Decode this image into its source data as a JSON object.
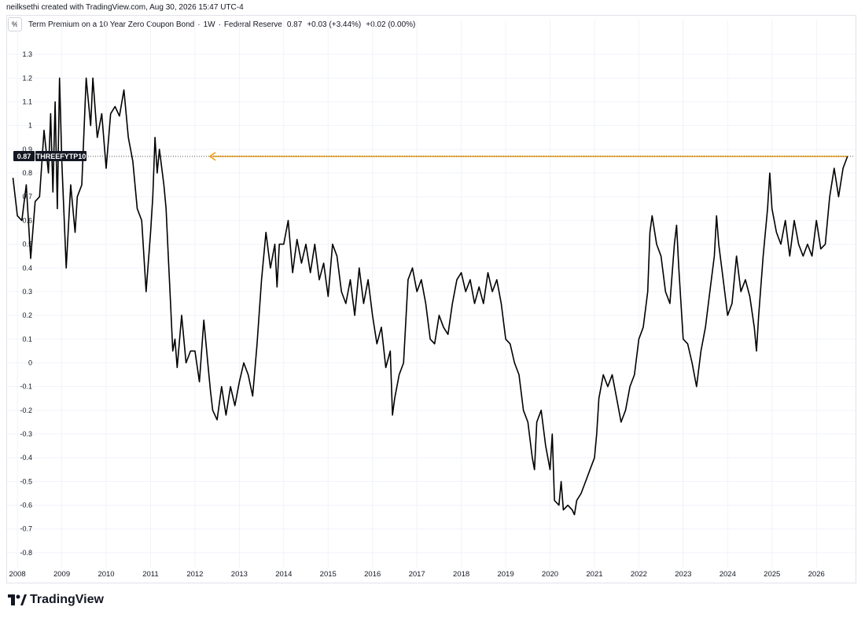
{
  "attribution": "neilksethi created with TradingView.com, Aug 30, 2026 15:47 UTC-4",
  "legend": {
    "unit_button": "%",
    "title": "Term Premium on a 10 Year Zero Coupon Bond",
    "interval": "1W",
    "source": "Federal Reserve",
    "last": "0.87",
    "change": "+0.03 (+3.44%)",
    "change2": "+0.02 (0.00%)"
  },
  "brand": {
    "name": "TradingView",
    "icon": "tradingview-logo-icon"
  },
  "colors": {
    "line": "#000000",
    "alert": "#f59d00",
    "grid": "#f0f3fa",
    "axis_text": "#131722"
  },
  "chart_data": {
    "type": "line",
    "title": "Term Premium on a 10 Year Zero Coupon Bond",
    "ylabel": "%",
    "ylim": [
      -0.85,
      1.38
    ],
    "xlim": [
      2007.75,
      2026.9
    ],
    "y_ticks": [
      "1.3",
      "1.2",
      "1.1",
      "1",
      "0.9",
      "0.8",
      "0.7",
      "0.6",
      "0.5",
      "0.4",
      "0.3",
      "0.2",
      "0.1",
      "0",
      "-0.1",
      "-0.2",
      "-0.3",
      "-0.4",
      "-0.5",
      "-0.6",
      "-0.7",
      "-0.8"
    ],
    "x_ticks": [
      "2008",
      "2009",
      "2010",
      "2011",
      "2012",
      "2013",
      "2014",
      "2015",
      "2016",
      "2017",
      "2018",
      "2019",
      "2020",
      "2021",
      "2022",
      "2023",
      "2024",
      "2025",
      "2026"
    ],
    "grid": true,
    "series": [
      {
        "name": "THREEFYTP10",
        "points": [
          [
            2007.9,
            0.78
          ],
          [
            2008.0,
            0.62
          ],
          [
            2008.1,
            0.6
          ],
          [
            2008.2,
            0.75
          ],
          [
            2008.3,
            0.44
          ],
          [
            2008.4,
            0.68
          ],
          [
            2008.5,
            0.7
          ],
          [
            2008.6,
            0.98
          ],
          [
            2008.7,
            0.8
          ],
          [
            2008.75,
            1.05
          ],
          [
            2008.8,
            0.72
          ],
          [
            2008.85,
            1.1
          ],
          [
            2008.9,
            0.65
          ],
          [
            2008.95,
            1.2
          ],
          [
            2009.0,
            0.85
          ],
          [
            2009.1,
            0.4
          ],
          [
            2009.2,
            0.75
          ],
          [
            2009.3,
            0.55
          ],
          [
            2009.35,
            0.7
          ],
          [
            2009.45,
            0.75
          ],
          [
            2009.55,
            1.2
          ],
          [
            2009.65,
            1.0
          ],
          [
            2009.7,
            1.2
          ],
          [
            2009.8,
            0.95
          ],
          [
            2009.9,
            1.05
          ],
          [
            2010.0,
            0.82
          ],
          [
            2010.1,
            1.05
          ],
          [
            2010.2,
            1.08
          ],
          [
            2010.3,
            1.04
          ],
          [
            2010.4,
            1.15
          ],
          [
            2010.5,
            0.95
          ],
          [
            2010.6,
            0.85
          ],
          [
            2010.7,
            0.65
          ],
          [
            2010.8,
            0.6
          ],
          [
            2010.85,
            0.45
          ],
          [
            2010.9,
            0.3
          ],
          [
            2011.0,
            0.55
          ],
          [
            2011.05,
            0.7
          ],
          [
            2011.1,
            0.95
          ],
          [
            2011.15,
            0.8
          ],
          [
            2011.2,
            0.9
          ],
          [
            2011.3,
            0.75
          ],
          [
            2011.35,
            0.65
          ],
          [
            2011.4,
            0.45
          ],
          [
            2011.45,
            0.25
          ],
          [
            2011.5,
            0.05
          ],
          [
            2011.55,
            0.1
          ],
          [
            2011.6,
            -0.02
          ],
          [
            2011.7,
            0.2
          ],
          [
            2011.8,
            0.0
          ],
          [
            2011.9,
            0.05
          ],
          [
            2012.0,
            0.05
          ],
          [
            2012.1,
            -0.08
          ],
          [
            2012.2,
            0.18
          ],
          [
            2012.3,
            -0.02
          ],
          [
            2012.35,
            -0.12
          ],
          [
            2012.4,
            -0.2
          ],
          [
            2012.5,
            -0.24
          ],
          [
            2012.6,
            -0.1
          ],
          [
            2012.7,
            -0.22
          ],
          [
            2012.8,
            -0.1
          ],
          [
            2012.9,
            -0.18
          ],
          [
            2013.0,
            -0.08
          ],
          [
            2013.1,
            0.0
          ],
          [
            2013.2,
            -0.05
          ],
          [
            2013.3,
            -0.14
          ],
          [
            2013.4,
            0.08
          ],
          [
            2013.5,
            0.35
          ],
          [
            2013.6,
            0.55
          ],
          [
            2013.7,
            0.4
          ],
          [
            2013.8,
            0.5
          ],
          [
            2013.85,
            0.32
          ],
          [
            2013.9,
            0.5
          ],
          [
            2014.0,
            0.5
          ],
          [
            2014.1,
            0.6
          ],
          [
            2014.2,
            0.38
          ],
          [
            2014.3,
            0.52
          ],
          [
            2014.4,
            0.42
          ],
          [
            2014.5,
            0.5
          ],
          [
            2014.6,
            0.38
          ],
          [
            2014.7,
            0.5
          ],
          [
            2014.8,
            0.35
          ],
          [
            2014.9,
            0.42
          ],
          [
            2015.0,
            0.28
          ],
          [
            2015.1,
            0.5
          ],
          [
            2015.2,
            0.45
          ],
          [
            2015.3,
            0.3
          ],
          [
            2015.4,
            0.25
          ],
          [
            2015.5,
            0.35
          ],
          [
            2015.6,
            0.2
          ],
          [
            2015.7,
            0.4
          ],
          [
            2015.8,
            0.25
          ],
          [
            2015.9,
            0.35
          ],
          [
            2016.0,
            0.2
          ],
          [
            2016.1,
            0.08
          ],
          [
            2016.2,
            0.15
          ],
          [
            2016.3,
            -0.02
          ],
          [
            2016.4,
            0.05
          ],
          [
            2016.45,
            -0.22
          ],
          [
            2016.5,
            -0.15
          ],
          [
            2016.6,
            -0.05
          ],
          [
            2016.7,
            0.0
          ],
          [
            2016.8,
            0.35
          ],
          [
            2016.9,
            0.4
          ],
          [
            2017.0,
            0.3
          ],
          [
            2017.1,
            0.35
          ],
          [
            2017.2,
            0.25
          ],
          [
            2017.3,
            0.1
          ],
          [
            2017.4,
            0.08
          ],
          [
            2017.5,
            0.2
          ],
          [
            2017.6,
            0.15
          ],
          [
            2017.7,
            0.12
          ],
          [
            2017.8,
            0.25
          ],
          [
            2017.9,
            0.35
          ],
          [
            2018.0,
            0.38
          ],
          [
            2018.1,
            0.3
          ],
          [
            2018.2,
            0.35
          ],
          [
            2018.3,
            0.25
          ],
          [
            2018.4,
            0.32
          ],
          [
            2018.5,
            0.25
          ],
          [
            2018.6,
            0.38
          ],
          [
            2018.7,
            0.3
          ],
          [
            2018.8,
            0.35
          ],
          [
            2018.9,
            0.25
          ],
          [
            2019.0,
            0.1
          ],
          [
            2019.1,
            0.08
          ],
          [
            2019.2,
            0.0
          ],
          [
            2019.3,
            -0.05
          ],
          [
            2019.4,
            -0.2
          ],
          [
            2019.5,
            -0.25
          ],
          [
            2019.6,
            -0.4
          ],
          [
            2019.65,
            -0.45
          ],
          [
            2019.7,
            -0.25
          ],
          [
            2019.8,
            -0.2
          ],
          [
            2019.9,
            -0.35
          ],
          [
            2020.0,
            -0.45
          ],
          [
            2020.05,
            -0.3
          ],
          [
            2020.1,
            -0.58
          ],
          [
            2020.2,
            -0.6
          ],
          [
            2020.25,
            -0.5
          ],
          [
            2020.3,
            -0.62
          ],
          [
            2020.4,
            -0.6
          ],
          [
            2020.5,
            -0.62
          ],
          [
            2020.55,
            -0.64
          ],
          [
            2020.6,
            -0.58
          ],
          [
            2020.7,
            -0.55
          ],
          [
            2020.8,
            -0.5
          ],
          [
            2020.9,
            -0.45
          ],
          [
            2021.0,
            -0.4
          ],
          [
            2021.05,
            -0.3
          ],
          [
            2021.1,
            -0.15
          ],
          [
            2021.2,
            -0.05
          ],
          [
            2021.3,
            -0.1
          ],
          [
            2021.4,
            -0.05
          ],
          [
            2021.5,
            -0.15
          ],
          [
            2021.6,
            -0.25
          ],
          [
            2021.7,
            -0.2
          ],
          [
            2021.8,
            -0.1
          ],
          [
            2021.9,
            -0.05
          ],
          [
            2022.0,
            0.1
          ],
          [
            2022.1,
            0.15
          ],
          [
            2022.2,
            0.3
          ],
          [
            2022.25,
            0.55
          ],
          [
            2022.3,
            0.62
          ],
          [
            2022.4,
            0.5
          ],
          [
            2022.5,
            0.45
          ],
          [
            2022.6,
            0.3
          ],
          [
            2022.7,
            0.25
          ],
          [
            2022.8,
            0.5
          ],
          [
            2022.85,
            0.58
          ],
          [
            2022.9,
            0.4
          ],
          [
            2023.0,
            0.1
          ],
          [
            2023.1,
            0.08
          ],
          [
            2023.2,
            0.0
          ],
          [
            2023.3,
            -0.1
          ],
          [
            2023.4,
            0.05
          ],
          [
            2023.5,
            0.15
          ],
          [
            2023.6,
            0.3
          ],
          [
            2023.7,
            0.45
          ],
          [
            2023.75,
            0.62
          ],
          [
            2023.8,
            0.5
          ],
          [
            2023.9,
            0.35
          ],
          [
            2024.0,
            0.2
          ],
          [
            2024.1,
            0.25
          ],
          [
            2024.2,
            0.45
          ],
          [
            2024.3,
            0.3
          ],
          [
            2024.4,
            0.35
          ],
          [
            2024.5,
            0.28
          ],
          [
            2024.6,
            0.15
          ],
          [
            2024.65,
            0.05
          ],
          [
            2024.7,
            0.2
          ],
          [
            2024.8,
            0.45
          ],
          [
            2024.9,
            0.65
          ],
          [
            2024.95,
            0.8
          ],
          [
            2025.0,
            0.65
          ],
          [
            2025.1,
            0.55
          ],
          [
            2025.2,
            0.5
          ],
          [
            2025.3,
            0.6
          ],
          [
            2025.4,
            0.45
          ],
          [
            2025.5,
            0.6
          ],
          [
            2025.6,
            0.5
          ],
          [
            2025.7,
            0.45
          ],
          [
            2025.8,
            0.5
          ],
          [
            2025.9,
            0.45
          ],
          [
            2026.0,
            0.6
          ],
          [
            2026.1,
            0.48
          ],
          [
            2026.2,
            0.5
          ],
          [
            2026.3,
            0.7
          ],
          [
            2026.4,
            0.82
          ],
          [
            2026.5,
            0.7
          ],
          [
            2026.6,
            0.82
          ],
          [
            2026.7,
            0.87
          ]
        ]
      }
    ],
    "last_value": 0.87,
    "last_value_label": "0.87",
    "alert_level": 0.87
  }
}
